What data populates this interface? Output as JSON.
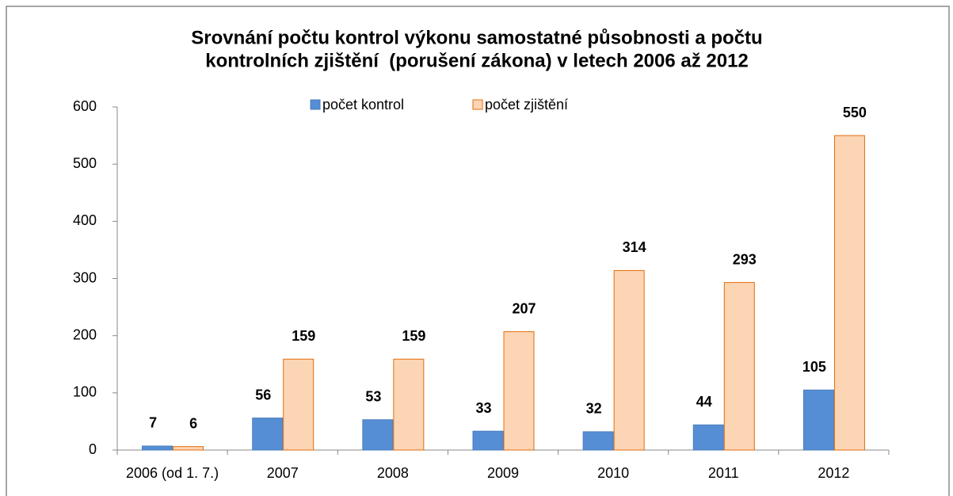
{
  "chart_data": {
    "type": "bar",
    "title": [
      "Srovnání počtu kontrol výkonu samostatné působnosti a počtu",
      "kontrolních zjištění  (porušení zákona) v letech 2006 až 2012"
    ],
    "categories": [
      "2006 (od 1. 7.)",
      "2007",
      "2008",
      "2009",
      "2010",
      "2011",
      "2012"
    ],
    "series": [
      {
        "name": "počet kontrol",
        "color": "#558ed5",
        "edge": "#4a7ebb",
        "values": [
          7,
          56,
          53,
          33,
          32,
          44,
          105
        ]
      },
      {
        "name": "počet zjištění",
        "color": "#fcd5b5",
        "edge": "#e46c0a",
        "values": [
          6,
          159,
          159,
          207,
          314,
          293,
          550
        ]
      }
    ],
    "ylim": [
      0,
      600
    ],
    "yticks": [
      0,
      100,
      200,
      300,
      400,
      500,
      600
    ],
    "grid": false,
    "legend": "top"
  }
}
